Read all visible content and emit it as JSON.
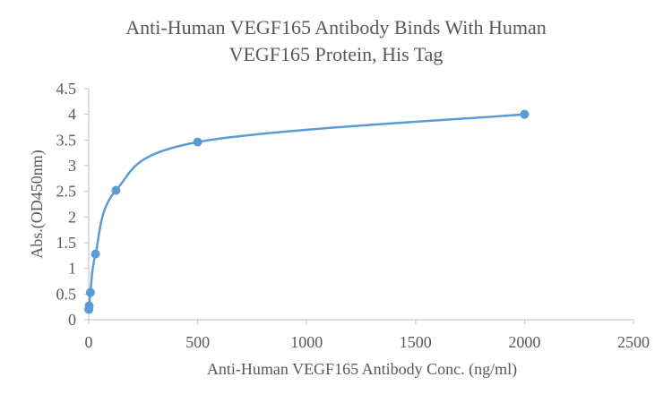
{
  "chart_data": {
    "type": "scatter",
    "title_lines": [
      "Anti-Human VEGF165 Antibody Binds With Human",
      "VEGF165 Protein, His Tag"
    ],
    "xlabel": "Anti-Human VEGF165 Antibody Conc. (ng/ml)",
    "ylabel": "Abs.(OD450nm)",
    "xlim": [
      0,
      2500
    ],
    "ylim": [
      0,
      4.5
    ],
    "x_ticks": [
      0,
      500,
      1000,
      1500,
      2000,
      2500
    ],
    "y_ticks": [
      0,
      0.5,
      1,
      1.5,
      2,
      2.5,
      3,
      3.5,
      4,
      4.5
    ],
    "x_tick_labels": [
      "0",
      "500",
      "1000",
      "1500",
      "2000",
      "2500"
    ],
    "y_tick_labels": [
      "0",
      "0.5",
      "1",
      "1.5",
      "2",
      "2.5",
      "3",
      "3.5",
      "4",
      "4.5"
    ],
    "grid": false,
    "legend": "none",
    "series": [
      {
        "color": "#5b9bd5",
        "smoothed_line": true,
        "x": [
          0.49,
          1.95,
          7.81,
          31.25,
          125,
          500,
          2000
        ],
        "y": [
          0.2,
          0.27,
          0.53,
          1.28,
          2.52,
          3.46,
          4.0
        ]
      }
    ],
    "axis_color": "#bfbfbf",
    "text_color": "#595959"
  }
}
